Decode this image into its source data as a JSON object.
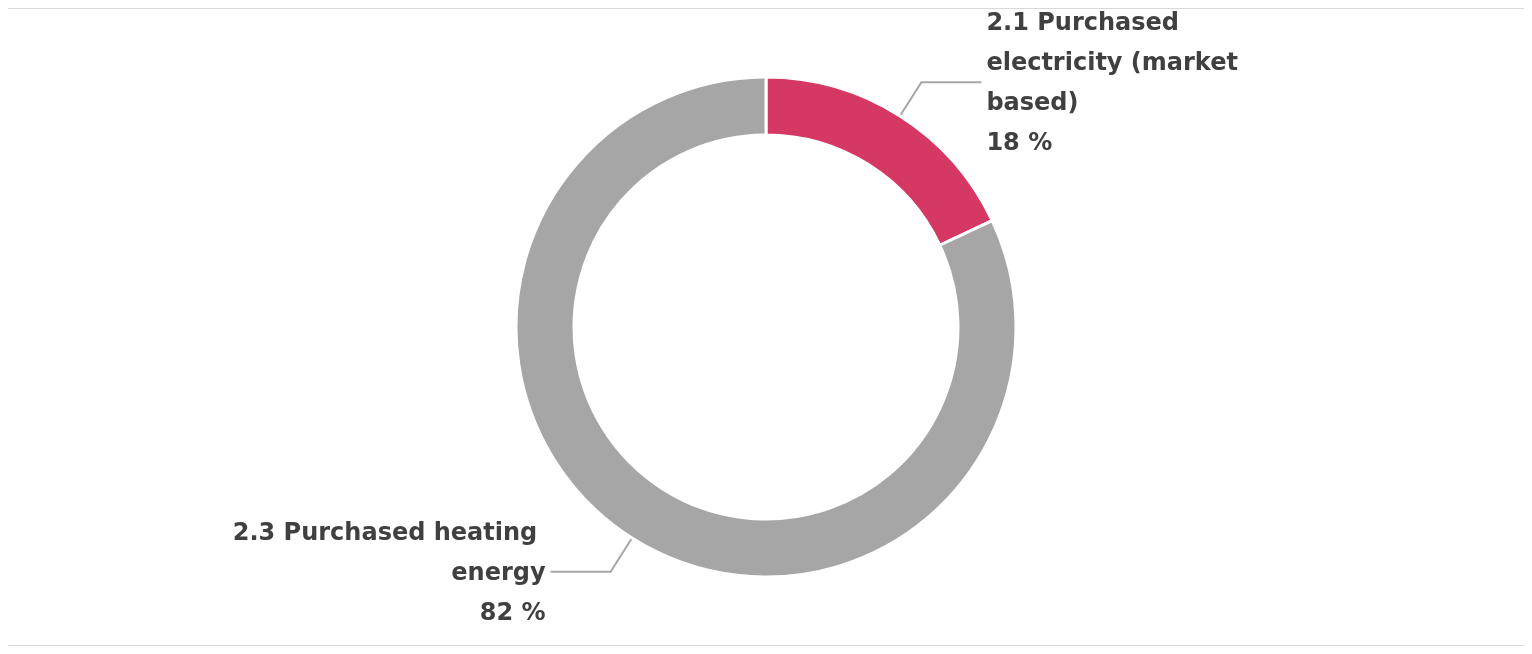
{
  "chart_data": {
    "type": "donut",
    "categories": [
      "2.1 Purchased electricity (market based)",
      "2.3 Purchased heating energy"
    ],
    "values": [
      18,
      82
    ],
    "colors": [
      "#d63864",
      "#a6a6a6"
    ],
    "value_labels": [
      "18 %",
      "82 %"
    ],
    "legend": false
  }
}
